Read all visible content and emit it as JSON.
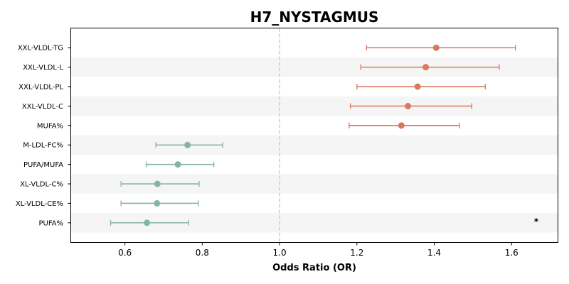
{
  "chart_data": {
    "type": "forest",
    "title": "H7_NYSTAGMUS",
    "xlabel": "Odds Ratio (OR)",
    "ylabel": "",
    "xlim": [
      0.46,
      1.72
    ],
    "xticks": [
      0.6,
      0.8,
      1.0,
      1.2,
      1.4,
      1.6
    ],
    "xtick_labels": [
      "0.6",
      "0.8",
      "1.0",
      "1.2",
      "1.4",
      "1.6"
    ],
    "reference_line": 1.0,
    "reference_color": "#f5c57f",
    "colors": {
      "positive": "#d9795e",
      "negative": "#86b59e",
      "band": "#f5f5f5"
    },
    "grid": false,
    "legend": "none",
    "items": [
      {
        "label": "XXL-VLDL-TG",
        "or": 1.405,
        "lower": 1.225,
        "upper": 1.61
      },
      {
        "label": "XXL-VLDL-L",
        "or": 1.378,
        "lower": 1.21,
        "upper": 1.568
      },
      {
        "label": "XXL-VLDL-PL",
        "or": 1.357,
        "lower": 1.2,
        "upper": 1.532
      },
      {
        "label": "XXL-VLDL-C",
        "or": 1.332,
        "lower": 1.183,
        "upper": 1.497
      },
      {
        "label": "MUFA%",
        "or": 1.315,
        "lower": 1.18,
        "upper": 1.465
      },
      {
        "label": "M-LDL-FC%",
        "or": 0.762,
        "lower": 0.68,
        "upper": 0.853
      },
      {
        "label": "PUFA/MUFA",
        "or": 0.737,
        "lower": 0.655,
        "upper": 0.83
      },
      {
        "label": "XL-VLDL-C%",
        "or": 0.684,
        "lower": 0.59,
        "upper": 0.792
      },
      {
        "label": "XL-VLDL-CE%",
        "or": 0.683,
        "lower": 0.59,
        "upper": 0.79
      },
      {
        "label": "PUFA%",
        "or": 0.657,
        "lower": 0.563,
        "upper": 0.765
      }
    ],
    "annotations": [
      {
        "text": "*",
        "row": "PUFA%"
      }
    ]
  }
}
